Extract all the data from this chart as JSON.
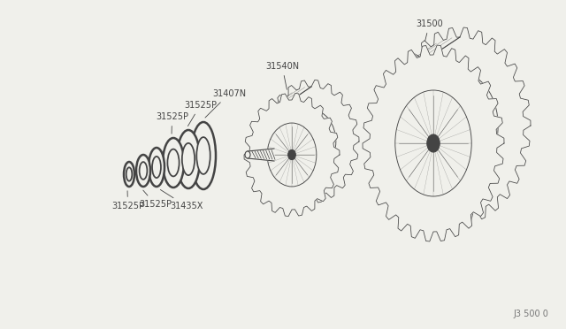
{
  "bg_color": "#f0f0eb",
  "line_color": "#444444",
  "text_color": "#222222",
  "fig_width": 6.4,
  "fig_height": 3.72,
  "footer_text": "J3 500 0",
  "dpi": 100,
  "xlim": [
    0,
    640
  ],
  "ylim": [
    0,
    372
  ]
}
